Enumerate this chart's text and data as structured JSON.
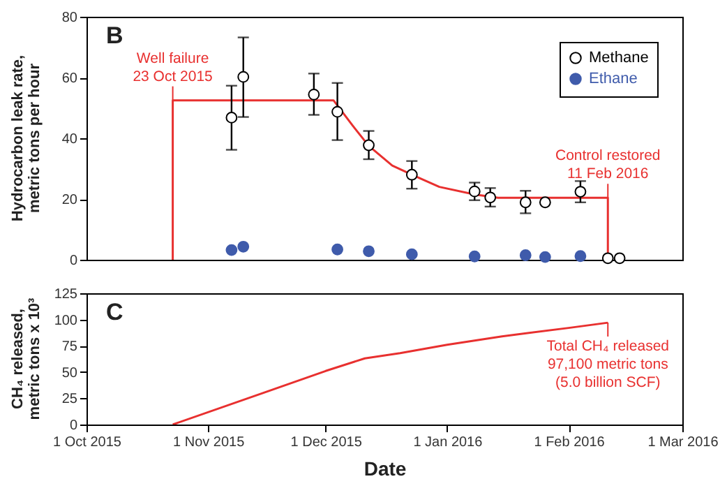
{
  "chart_data": [
    {
      "type": "scatter",
      "ylabel": "Hydrocarbon leak rate,\nmetric tons per hour",
      "annotations": [
        "B",
        {
          "text": "Well failure\n23 Oct 2015",
          "x": "2015-10-23",
          "y": 52.5
        },
        {
          "text": "Control restored\n11 Feb 2016",
          "x": "2016-02-11",
          "y": 20.4
        }
      ],
      "series": [
        {
          "name": "Methane",
          "color": "#ffffff",
          "marker": "circle",
          "x": [
            "2015-11-07",
            "2015-11-10",
            "2015-11-28",
            "2015-12-04",
            "2015-12-12",
            "2015-12-23",
            "2016-01-08",
            "2016-01-12",
            "2016-01-21",
            "2016-01-26",
            "2016-02-04",
            "2016-02-11",
            "2016-02-14"
          ],
          "values": [
            46.8,
            60.2,
            54.4,
            48.7,
            37.7,
            28,
            22.5,
            20.5,
            18.9,
            18.9,
            22.4,
            0.5,
            0.5
          ],
          "errors": [
            [
              36.2,
              57.3
            ],
            [
              47,
              73.2
            ],
            [
              47.7,
              61.3
            ],
            [
              39.4,
              58.2
            ],
            [
              33.1,
              42.4
            ],
            [
              23.4,
              32.5
            ],
            [
              19.6,
              25.4
            ],
            [
              17.5,
              23.6
            ],
            [
              15.3,
              22.7
            ],
            null,
            [
              18.9,
              25.9
            ],
            null,
            null
          ]
        },
        {
          "name": "Ethane",
          "color": "#3f5bab",
          "marker": "circle",
          "x": [
            "2015-11-07",
            "2015-11-10",
            "2015-12-04",
            "2015-12-12",
            "2015-12-23",
            "2016-01-08",
            "2016-01-21",
            "2016-01-26",
            "2016-02-04"
          ],
          "values": [
            3.2,
            4.3,
            3.4,
            2.8,
            1.8,
            1.1,
            1.5,
            0.9,
            1.2
          ]
        },
        {
          "type": "line",
          "color": "#e8302f",
          "x": [
            "2015-10-23",
            "2015-10-23",
            "2015-12-03",
            "2015-12-08",
            "2015-12-12",
            "2015-12-18",
            "2015-12-23",
            "2015-12-30",
            "2016-01-08",
            "2016-01-14",
            "2016-02-11",
            "2016-02-11"
          ],
          "values": [
            0,
            52.5,
            52.5,
            44,
            37.5,
            31,
            28,
            24,
            21.5,
            20.4,
            20.4,
            0
          ]
        }
      ],
      "xlim": [
        "2015-10-01",
        "2016-03-01"
      ],
      "ylim": [
        0,
        80
      ],
      "yticks": [
        0,
        20,
        40,
        60,
        80
      ],
      "tick_labels": "y",
      "legend": "top right"
    },
    {
      "type": "line",
      "xlabel": "Date",
      "ylabel": "CH₄ released,\nmetric tons x 10³",
      "annotations": [
        "C",
        {
          "text": "Total CH₄ released\n97,100 metric tons\n(5.0 billion SCF)",
          "x": "2016-02-11",
          "y": 97.1
        }
      ],
      "series": [
        {
          "color": "#e8302f",
          "x": [
            "2015-10-23",
            "2015-11-15",
            "2015-12-01",
            "2015-12-11",
            "2015-12-20",
            "2016-01-01",
            "2016-01-15",
            "2016-02-01",
            "2016-02-11"
          ],
          "values": [
            0,
            30,
            51,
            63,
            68,
            76,
            84,
            92,
            97
          ]
        }
      ],
      "xlim": [
        "2015-10-01",
        "2016-03-01"
      ],
      "xticks": [
        {
          "value": "2015-10-01",
          "label": "1 Oct 2015"
        },
        {
          "value": "2015-11-01",
          "label": "1 Nov 2015"
        },
        {
          "value": "2015-12-01",
          "label": "1 Dec 2015"
        },
        {
          "value": "2016-01-01",
          "label": "1 Jan 2016"
        },
        {
          "value": "2016-02-01",
          "label": "1 Feb 2016"
        },
        {
          "value": "2016-03-01",
          "label": "1 Mar 2016"
        }
      ],
      "ylim": [
        0,
        125
      ],
      "yticks": [
        0,
        25,
        50,
        75,
        100,
        125
      ]
    }
  ]
}
